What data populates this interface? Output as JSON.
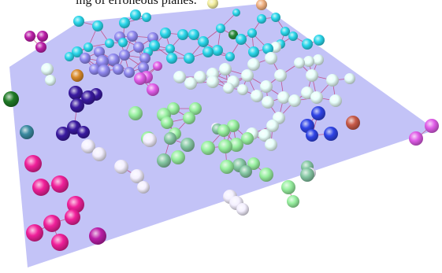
{
  "caption_text": "ing of erroneous planes.",
  "plane_color": "#bdbdf6",
  "link_color": "#c0306a",
  "cluster_colors": {
    "cyan": "#2ad6ea",
    "lavender": "#8f88ef",
    "indigo": "#3a1aa0",
    "pale_cyan": "#e8fffb",
    "mint": "#98f0a0",
    "sage": "#86c8a4",
    "blue": "#2f44e6",
    "magenta": "#f0209a",
    "purple": "#bb1ea8",
    "violet": "#e05ce8",
    "white": "#f4f0ff"
  }
}
